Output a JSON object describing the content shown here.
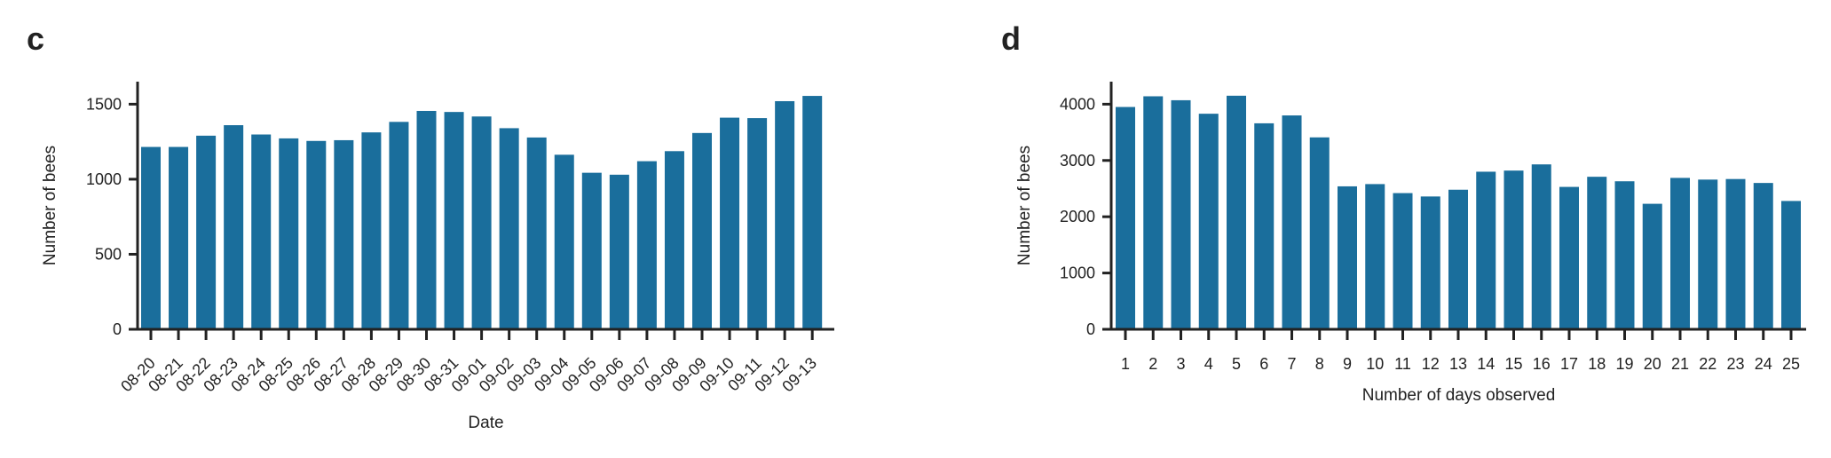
{
  "panels": {
    "c": "c",
    "d": "d"
  },
  "chart_data": [
    {
      "type": "bar",
      "panel": "c",
      "color": "#1a6e9c",
      "categories": [
        "08-20",
        "08-21",
        "08-22",
        "08-23",
        "08-24",
        "08-25",
        "08-26",
        "08-27",
        "08-28",
        "08-29",
        "08-30",
        "08-31",
        "09-01",
        "09-02",
        "09-03",
        "09-04",
        "09-05",
        "09-06",
        "09-07",
        "09-08",
        "09-09",
        "09-10",
        "09-11",
        "09-12",
        "09-13"
      ],
      "values": [
        1215,
        1215,
        1290,
        1360,
        1298,
        1272,
        1255,
        1260,
        1312,
        1382,
        1455,
        1448,
        1418,
        1340,
        1278,
        1163,
        1043,
        1030,
        1120,
        1187,
        1308,
        1410,
        1407,
        1520,
        1555
      ],
      "xlabel": "Date",
      "ylabel": "Number of bees",
      "yticks": [
        0,
        500,
        1000,
        1500
      ],
      "ylim": [
        0,
        1650
      ]
    },
    {
      "type": "bar",
      "panel": "d",
      "color": "#1a6e9c",
      "categories": [
        "1",
        "2",
        "3",
        "4",
        "5",
        "6",
        "7",
        "8",
        "9",
        "10",
        "11",
        "12",
        "13",
        "14",
        "15",
        "16",
        "17",
        "18",
        "19",
        "20",
        "21",
        "22",
        "23",
        "24",
        "25"
      ],
      "values": [
        3950,
        4140,
        4070,
        3830,
        4150,
        3660,
        3800,
        3410,
        2540,
        2580,
        2420,
        2360,
        2480,
        2800,
        2820,
        2930,
        2530,
        2710,
        2630,
        2230,
        2690,
        2660,
        2670,
        2600,
        2280
      ],
      "xlabel": "Number of days observed",
      "ylabel": "Number of bees",
      "yticks": [
        0,
        1000,
        2000,
        3000,
        4000
      ],
      "ylim": [
        0,
        4400
      ]
    }
  ]
}
